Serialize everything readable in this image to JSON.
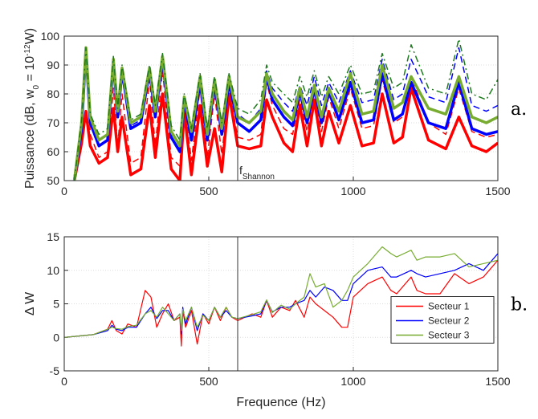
{
  "chart_data": [
    {
      "type": "line",
      "panel_label": "a.",
      "ylabel": [
        "Puissance (dB, w",
        "0",
        " = 10",
        "-12",
        "W)"
      ],
      "xlim": [
        0,
        1500
      ],
      "ylim": [
        50,
        100
      ],
      "xticks": [
        0,
        500,
        1000,
        1500
      ],
      "yticks": [
        50,
        60,
        70,
        80,
        90,
        100
      ],
      "grid": true,
      "vline": {
        "x": 600,
        "label": [
          "f",
          "Shannon"
        ]
      },
      "x": [
        35,
        60,
        75,
        90,
        120,
        150,
        170,
        185,
        200,
        230,
        265,
        295,
        315,
        340,
        370,
        400,
        415,
        440,
        470,
        495,
        520,
        545,
        570,
        600,
        640,
        680,
        700,
        720,
        760,
        790,
        815,
        840,
        865,
        890,
        915,
        950,
        990,
        1030,
        1070,
        1100,
        1140,
        1170,
        1200,
        1260,
        1320,
        1365,
        1410,
        1460,
        1500
      ],
      "series": [
        {
          "color": "#ff0000",
          "linestyle": "solid",
          "linewidth": 3.5,
          "values": [
            50,
            63,
            74,
            62,
            56,
            58,
            75,
            60,
            72,
            52,
            54,
            76,
            58,
            80,
            54,
            50,
            74,
            52,
            76,
            55,
            68,
            53,
            80,
            62,
            61,
            62,
            78,
            72,
            63,
            60,
            76,
            62,
            78,
            62,
            74,
            63,
            76,
            62,
            63,
            80,
            63,
            65,
            82,
            64,
            61,
            72,
            62,
            60,
            63
          ]
        },
        {
          "color": "#ff0000",
          "linestyle": "dashed",
          "linewidth": 1.5,
          "values": [
            50,
            65,
            94,
            66,
            58,
            60,
            82,
            62,
            80,
            56,
            58,
            85,
            62,
            88,
            58,
            55,
            77,
            57,
            82,
            58,
            80,
            59,
            82,
            65,
            64,
            66,
            84,
            76,
            68,
            66,
            78,
            67,
            80,
            67,
            79,
            68,
            82,
            68,
            69,
            85,
            70,
            72,
            86,
            70,
            66,
            82,
            67,
            65,
            66
          ]
        },
        {
          "color": "#0000ff",
          "linestyle": "solid",
          "linewidth": 3.5,
          "values": [
            50,
            68,
            95,
            70,
            62,
            64,
            91,
            72,
            88,
            68,
            70,
            88,
            72,
            92,
            65,
            60,
            78,
            64,
            84,
            64,
            84,
            66,
            84,
            70,
            67,
            71,
            86,
            78,
            72,
            69,
            81,
            70,
            82,
            70,
            81,
            71,
            84,
            70,
            71,
            87,
            71,
            73,
            84,
            70,
            68,
            84,
            68,
            66,
            67
          ]
        },
        {
          "color": "#0000ff",
          "linestyle": "dashed",
          "linewidth": 1.5,
          "values": [
            50,
            69,
            95,
            71,
            64,
            66,
            92,
            73,
            89,
            69,
            71,
            89,
            74,
            93,
            67,
            62,
            79,
            66,
            85,
            66,
            85,
            68,
            85,
            73,
            70,
            75,
            88,
            82,
            77,
            74,
            83,
            76,
            86,
            76,
            84,
            77,
            88,
            77,
            78,
            92,
            78,
            80,
            92,
            79,
            77,
            96,
            76,
            74,
            76
          ]
        },
        {
          "color": "#77ac30",
          "linestyle": "solid",
          "linewidth": 3.5,
          "values": [
            50,
            70,
            96,
            72,
            64,
            66,
            92,
            74,
            89,
            70,
            72,
            89,
            74,
            93,
            67,
            62,
            79,
            67,
            86,
            66,
            85,
            68,
            86,
            72,
            70,
            74,
            87,
            80,
            74,
            71,
            82,
            72,
            83,
            72,
            82,
            74,
            87,
            73,
            74,
            90,
            75,
            77,
            86,
            75,
            73,
            86,
            72,
            70,
            72
          ]
        },
        {
          "color": "#1e7a1e",
          "linestyle": "dashdot",
          "linewidth": 1.5,
          "values": [
            50,
            71,
            96,
            73,
            66,
            68,
            93,
            75,
            90,
            71,
            73,
            90,
            76,
            94,
            69,
            64,
            80,
            68,
            87,
            68,
            86,
            70,
            87,
            75,
            73,
            78,
            90,
            84,
            80,
            77,
            86,
            79,
            88,
            79,
            86,
            80,
            90,
            80,
            81,
            94,
            82,
            84,
            97,
            82,
            80,
            99,
            80,
            78,
            85
          ]
        }
      ]
    },
    {
      "type": "line",
      "panel_label": "b.",
      "ylabel": [
        "Δ W"
      ],
      "xlabel": "Frequence (Hz)",
      "xlim": [
        0,
        1500
      ],
      "ylim": [
        -5,
        15
      ],
      "xticks": [
        0,
        500,
        1000,
        1500
      ],
      "yticks": [
        -5,
        0,
        5,
        10,
        15
      ],
      "grid": true,
      "vline": {
        "x": 600
      },
      "x": [
        0,
        50,
        100,
        150,
        165,
        180,
        200,
        220,
        250,
        280,
        300,
        320,
        340,
        360,
        380,
        400,
        405,
        410,
        420,
        440,
        460,
        480,
        500,
        520,
        540,
        560,
        580,
        600,
        650,
        680,
        700,
        720,
        750,
        780,
        800,
        830,
        850,
        870,
        900,
        930,
        960,
        980,
        1000,
        1050,
        1100,
        1130,
        1150,
        1200,
        1220,
        1250,
        1300,
        1350,
        1400,
        1450,
        1500
      ],
      "series": [
        {
          "name": "Secteur 1",
          "color": "#ff0000",
          "linestyle": "solid",
          "linewidth": 1.2,
          "values": [
            0,
            0.2,
            0.4,
            1.2,
            2.5,
            1,
            0.5,
            2,
            1.5,
            7,
            6,
            1.5,
            3.5,
            5,
            2.5,
            3,
            -1.3,
            4,
            1.5,
            4,
            -1,
            3.5,
            2,
            4.5,
            2.5,
            4.5,
            3,
            2.5,
            3.5,
            3,
            5.5,
            3,
            4.5,
            4,
            5.5,
            3,
            6,
            5,
            4,
            3,
            1.5,
            1.5,
            6,
            8,
            9,
            7,
            6.5,
            9,
            7,
            6.5,
            6.5,
            9.5,
            8,
            9,
            11.5
          ]
        },
        {
          "name": "Secteur 2",
          "color": "#0000ff",
          "linestyle": "solid",
          "linewidth": 1.2,
          "values": [
            0,
            0.2,
            0.4,
            1,
            1.8,
            1.2,
            1,
            1.5,
            1.5,
            3.5,
            4.5,
            2.8,
            4,
            4,
            2.5,
            3.5,
            0.5,
            4.5,
            2,
            4.5,
            1,
            3.5,
            2.5,
            4.5,
            3,
            4,
            3,
            2.8,
            3.2,
            3.5,
            5.5,
            3.8,
            4.5,
            4.5,
            5,
            5.5,
            7,
            6,
            7.5,
            7,
            5.5,
            5.5,
            8,
            10,
            10.5,
            9,
            9,
            10,
            9.5,
            9,
            9.5,
            10,
            11,
            10,
            12.5
          ]
        },
        {
          "name": "Secteur 3",
          "color": "#77ac30",
          "linestyle": "solid",
          "linewidth": 1.2,
          "values": [
            0,
            0.2,
            0.4,
            1.2,
            1.5,
            1.3,
            1.2,
            1.6,
            1.8,
            3.5,
            4,
            3,
            4.5,
            3.5,
            2.5,
            3.5,
            1,
            4.2,
            2.5,
            4.5,
            1.5,
            3.3,
            2.5,
            4.5,
            3,
            4.5,
            3,
            2.8,
            3.4,
            3.8,
            5.6,
            3.7,
            4.8,
            4.2,
            5,
            6,
            9.5,
            7.5,
            8,
            4.5,
            5.5,
            7,
            9,
            11,
            13.5,
            12.5,
            12,
            13,
            11.5,
            12,
            12,
            12.5,
            10.5,
            11,
            11.5
          ]
        }
      ],
      "legend": "east"
    }
  ]
}
